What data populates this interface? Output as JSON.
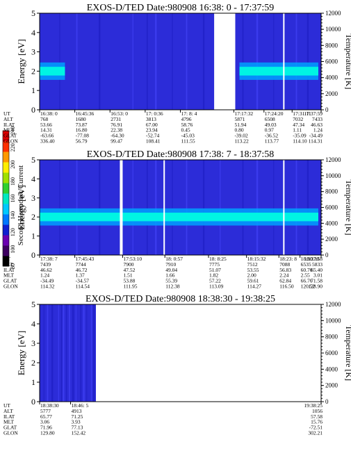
{
  "chart_data": [
    {
      "type": "heatmap",
      "title": "EXOS-D/TED   Date:980908  16:38: 0 - 17:37:59",
      "ylabel": "Energy [eV]",
      "y2label": "Temperature [K]",
      "ylim": [
        0,
        5
      ],
      "yticks": [
        "0",
        "1",
        "2",
        "3",
        "4",
        "5"
      ],
      "y2lim": [
        0,
        12000
      ],
      "y2ticks": [
        "0",
        "2000",
        "4000",
        "6000",
        "8000",
        "10000",
        "12000"
      ],
      "gaps": [
        [
          0.62,
          0.695
        ],
        [
          0.865,
          0.87
        ]
      ],
      "band": {
        "center_ev": 2.0,
        "width_ev": 0.9,
        "active_ranges": [
          [
            0.0,
            0.09
          ],
          [
            0.71,
            0.99
          ]
        ]
      },
      "table_labels": [
        "UT",
        "ALT",
        "ILAT",
        "MLT",
        "GLAT",
        "GLON"
      ],
      "columns": [
        {
          "pos": 0.0,
          "values": [
            "16:38: 0",
            "768",
            "53.66",
            "14.31",
            "-63.66",
            "336.40"
          ]
        },
        {
          "pos": 0.125,
          "values": [
            "16:45:36",
            "1680",
            "73.87",
            "16.80",
            "-77.08",
            "56.79"
          ]
        },
        {
          "pos": 0.25,
          "values": [
            "16:53: 0",
            "2731",
            "76.91",
            "22.38",
            "-64.30",
            "99.47"
          ]
        },
        {
          "pos": 0.375,
          "values": [
            "17: 0:36",
            "3813",
            "67.00",
            "23.94",
            "-52.74",
            "108.41"
          ]
        },
        {
          "pos": 0.5,
          "values": [
            "17: 8: 4",
            "4796",
            "58.76",
            "0.45",
            "-45.03",
            "111.55"
          ]
        },
        {
          "pos": 0.69,
          "values": [
            "17:17:32",
            "5871",
            "51.94",
            "0.80",
            "-39.02",
            "113.22"
          ]
        },
        {
          "pos": 0.797,
          "values": [
            "17:24:20",
            "6508",
            "49.03",
            "0.97",
            "-36.52",
            "113.77"
          ]
        },
        {
          "pos": 0.897,
          "values": [
            "17:31:11",
            "7032",
            "47.34",
            "1.11",
            "-35.09",
            "114.10"
          ]
        },
        {
          "pos": 1.0,
          "values": [
            "17:37:59",
            "7433",
            "46.63",
            "1.24",
            "-34.49",
            "114.31"
          ]
        }
      ]
    },
    {
      "type": "heatmap",
      "title": "EXOS-D/TED   Date:980908  17:38: 7 - 18:37:58",
      "ylabel": "Energy [eV]",
      "y2label": "Temperature [K]",
      "ylim": [
        0,
        5
      ],
      "yticks": [
        "0",
        "1",
        "2",
        "3",
        "4",
        "5"
      ],
      "y2lim": [
        0,
        12000
      ],
      "y2ticks": [
        "0",
        "2000",
        "4000",
        "6000",
        "8000",
        "10000",
        "12000"
      ],
      "gaps": [
        [
          0.285,
          0.295
        ],
        [
          0.44,
          0.445
        ],
        [
          0.865,
          0.87
        ]
      ],
      "band": {
        "center_ev": 2.0,
        "width_ev": 0.9,
        "active_ranges": [
          [
            0.0,
            0.99
          ]
        ]
      },
      "table_labels": [
        "UT",
        "ALT",
        "ILAT",
        "MLT",
        "GLAT",
        "GLON"
      ],
      "columns": [
        {
          "pos": 0.0,
          "values": [
            "17:38: 7",
            "7439",
            "46.62",
            "1.24",
            "-34.49",
            "114.32"
          ]
        },
        {
          "pos": 0.125,
          "values": [
            "17:45:43",
            "7744",
            "46.72",
            "1.37",
            "-34.57",
            "114.54"
          ]
        },
        {
          "pos": 0.295,
          "values": [
            "17:53:10",
            "7900",
            "47.52",
            "1.51",
            "53.88",
            "111.95"
          ]
        },
        {
          "pos": 0.445,
          "values": [
            "18: 0:57",
            "7910",
            "49.04",
            "1.66",
            "55.39",
            "112.38"
          ]
        },
        {
          "pos": 0.6,
          "values": [
            "18: 8:25",
            "7775",
            "51.07",
            "1.82",
            "57.22",
            "113.09"
          ]
        },
        {
          "pos": 0.735,
          "values": [
            "18:15:32",
            "7512",
            "53.55",
            "2.00",
            "59.61",
            "114.27"
          ]
        },
        {
          "pos": 0.85,
          "values": [
            "18:23: 8",
            "7088",
            "56.83",
            "2.24",
            "62.84",
            "116.50"
          ]
        },
        {
          "pos": 0.925,
          "values": [
            "18:30:30",
            "6535",
            "60.70",
            "2.55",
            "66.76",
            "120.52"
          ]
        },
        {
          "pos": 1.0,
          "values": [
            "18:37:58",
            "5833",
            "65.40",
            "3.01",
            "71.58",
            "128.90"
          ]
        }
      ]
    },
    {
      "type": "heatmap",
      "title": "EXOS-D/TED   Date:980908  18:38:30 - 19:38:25",
      "ylabel": "Energy [eV]",
      "y2label": "Temperature [K]",
      "ylim": [
        0,
        5
      ],
      "yticks": [
        "0",
        "1",
        "2",
        "3",
        "4",
        "5"
      ],
      "y2lim": [
        0,
        12000
      ],
      "y2ticks": [
        "0",
        "2000",
        "4000",
        "6000",
        "8000",
        "10000",
        "12000"
      ],
      "data_extent": [
        0.0,
        0.2
      ],
      "gaps": [],
      "band": {
        "center_ev": 2.0,
        "width_ev": 0.0,
        "active_ranges": []
      },
      "table_labels": [
        "UT",
        "ALT",
        "ILAT",
        "MLT",
        "GLAT",
        "GLON"
      ],
      "columns": [
        {
          "pos": 0.0,
          "values": [
            "18:38:30",
            "5777",
            "65.77",
            "3.06",
            "71.96",
            "129.80"
          ]
        },
        {
          "pos": 0.11,
          "values": [
            "18:46: 5",
            "4913",
            "71.25",
            "3.93",
            "77.13",
            "152.42"
          ]
        },
        {
          "pos": 1.0,
          "values": [
            "19:38:25",
            "1056",
            "57.58",
            "15.76",
            "-72.51",
            "302.21"
          ]
        }
      ]
    }
  ],
  "colorbar": {
    "label": "Second Harmonic Current",
    "ticks": [
      "80",
      "100",
      "120",
      "140",
      "160",
      "180",
      "200",
      "220",
      "240"
    ],
    "colors": [
      "#000000",
      "#3d0060",
      "#6a00b0",
      "#1020d0",
      "#0078ff",
      "#00c8ff",
      "#00e8c0",
      "#30d030",
      "#a0e000",
      "#ffee00",
      "#ff9900",
      "#ff3000",
      "#e00000"
    ]
  },
  "palette": {
    "background": "#2c2cd8",
    "gap": "#ffffff",
    "band_core": "#00ffe0",
    "band_mid": "#00a0ff"
  }
}
